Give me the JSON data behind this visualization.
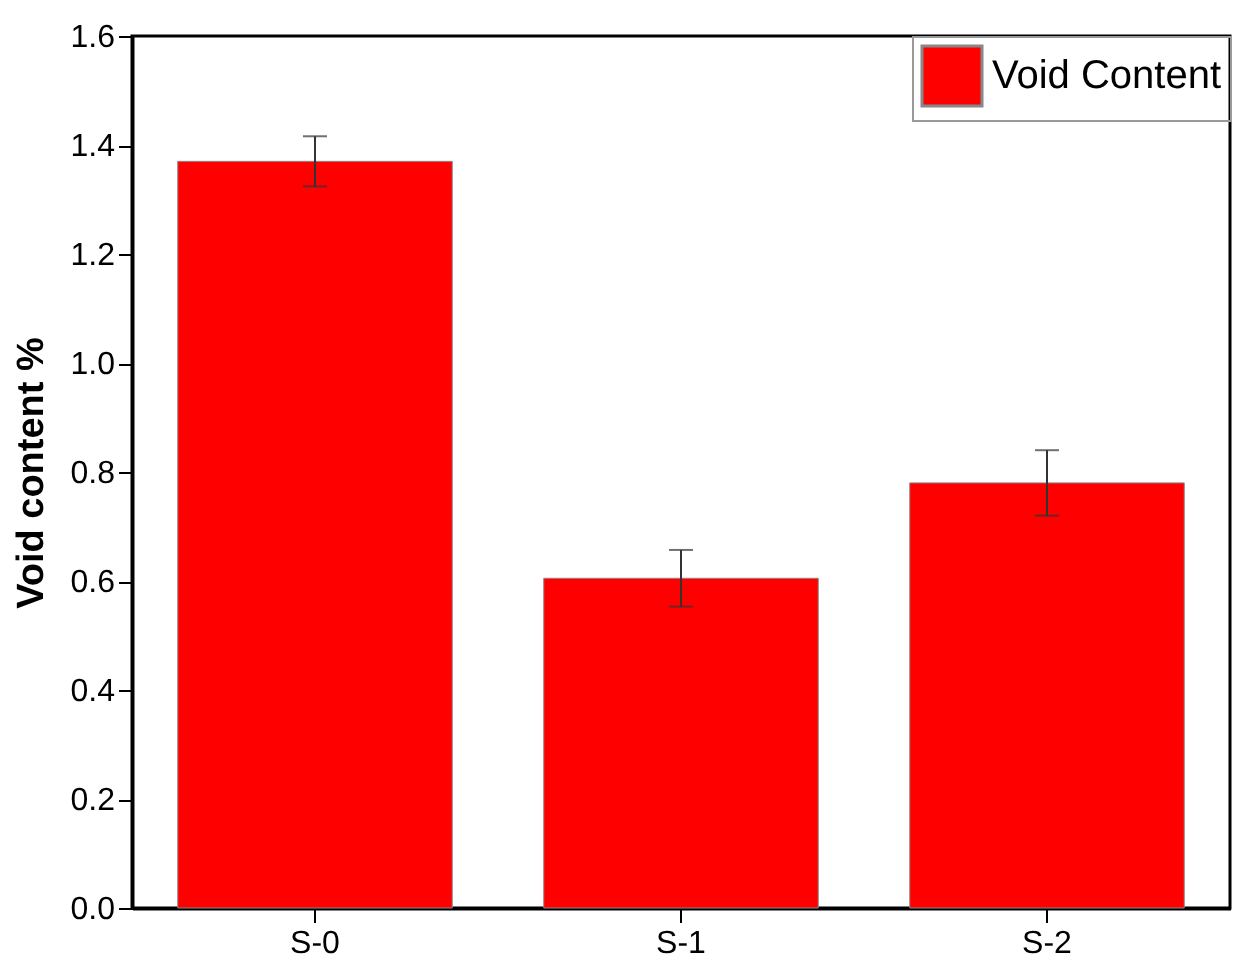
{
  "chart_data": {
    "type": "bar",
    "ylabel": "Void content %",
    "categories": [
      "S-0",
      "S-1",
      "S-2"
    ],
    "series": [
      {
        "name": "Void Content",
        "color": "#ff0000",
        "values": [
          1.37,
          0.605,
          0.78
        ],
        "errors": [
          0.046,
          0.052,
          0.06
        ]
      }
    ],
    "ylim": [
      0,
      1.6
    ],
    "yticks": [
      {
        "value": 0,
        "label": "0.0"
      },
      0.2,
      0.4,
      0.6,
      0.8,
      {
        "value": 1,
        "label": "1.0"
      },
      1.2,
      1.4,
      1.6
    ],
    "grid": false,
    "legend": "top right"
  }
}
